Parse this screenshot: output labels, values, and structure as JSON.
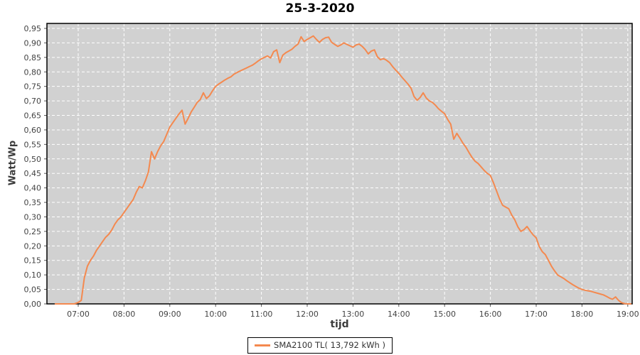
{
  "window": {
    "title": "25-3-2020"
  },
  "colors": {
    "page_bg": "#ffffff",
    "plot_bg": "#d1d1d1",
    "grid": "#ffffff",
    "plot_border": "#000000",
    "tick": "#555555",
    "tick_text": "#434343",
    "series_line": "#f4894f",
    "title_text": "#000000"
  },
  "chart_data": {
    "type": "line",
    "title": "25-3-2020",
    "xlabel": "tijd",
    "ylabel": "Watt/Wp",
    "legend": "SMA2100 TL( 13,792 kWh )",
    "legend_position": "bottom-center",
    "grid": true,
    "ylim": [
      0,
      0.95
    ],
    "x_range": [
      "06:19",
      "19:06"
    ],
    "y_tick_labels": [
      "0,00",
      "0,05",
      "0,10",
      "0,15",
      "0,20",
      "0,25",
      "0,30",
      "0,35",
      "0,40",
      "0,45",
      "0,50",
      "0,55",
      "0,60",
      "0,65",
      "0,70",
      "0,75",
      "0,80",
      "0,85",
      "0,90",
      "0,95"
    ],
    "x_tick_labels": [
      "07:00",
      "08:00",
      "09:00",
      "10:00",
      "11:00",
      "12:00",
      "13:00",
      "14:00",
      "15:00",
      "16:00",
      "17:00",
      "18:00",
      "19:00"
    ],
    "series": [
      {
        "name": "SMA2100 TL( 13,792 kWh )",
        "color": "#f4894f",
        "points": [
          [
            "06:30",
            0
          ],
          [
            "06:35",
            0
          ],
          [
            "06:40",
            0
          ],
          [
            "06:45",
            0
          ],
          [
            "06:50",
            0
          ],
          [
            "06:55",
            0
          ],
          [
            "07:00",
            0.005
          ],
          [
            "07:04",
            0.012
          ],
          [
            "07:08",
            0.09
          ],
          [
            "07:12",
            0.13
          ],
          [
            "07:16",
            0.15
          ],
          [
            "07:20",
            0.165
          ],
          [
            "07:24",
            0.185
          ],
          [
            "07:28",
            0.2
          ],
          [
            "07:32",
            0.215
          ],
          [
            "07:36",
            0.23
          ],
          [
            "07:40",
            0.24
          ],
          [
            "07:44",
            0.255
          ],
          [
            "07:48",
            0.275
          ],
          [
            "07:52",
            0.29
          ],
          [
            "07:56",
            0.3
          ],
          [
            "08:00",
            0.315
          ],
          [
            "08:04",
            0.33
          ],
          [
            "08:08",
            0.345
          ],
          [
            "08:12",
            0.36
          ],
          [
            "08:16",
            0.385
          ],
          [
            "08:20",
            0.405
          ],
          [
            "08:24",
            0.4
          ],
          [
            "08:28",
            0.425
          ],
          [
            "08:32",
            0.455
          ],
          [
            "08:36",
            0.525
          ],
          [
            "08:40",
            0.5
          ],
          [
            "08:44",
            0.525
          ],
          [
            "08:48",
            0.545
          ],
          [
            "08:52",
            0.56
          ],
          [
            "08:56",
            0.585
          ],
          [
            "09:00",
            0.61
          ],
          [
            "09:04",
            0.625
          ],
          [
            "09:08",
            0.64
          ],
          [
            "09:12",
            0.655
          ],
          [
            "09:16",
            0.668
          ],
          [
            "09:20",
            0.62
          ],
          [
            "09:24",
            0.64
          ],
          [
            "09:28",
            0.662
          ],
          [
            "09:32",
            0.678
          ],
          [
            "09:36",
            0.695
          ],
          [
            "09:40",
            0.705
          ],
          [
            "09:44",
            0.728
          ],
          [
            "09:48",
            0.708
          ],
          [
            "09:52",
            0.718
          ],
          [
            "09:56",
            0.735
          ],
          [
            "10:00",
            0.75
          ],
          [
            "10:04",
            0.758
          ],
          [
            "10:08",
            0.765
          ],
          [
            "10:12",
            0.772
          ],
          [
            "10:16",
            0.778
          ],
          [
            "10:20",
            0.783
          ],
          [
            "10:24",
            0.792
          ],
          [
            "10:28",
            0.798
          ],
          [
            "10:32",
            0.803
          ],
          [
            "10:36",
            0.808
          ],
          [
            "10:40",
            0.813
          ],
          [
            "10:44",
            0.818
          ],
          [
            "10:48",
            0.823
          ],
          [
            "10:52",
            0.83
          ],
          [
            "10:56",
            0.838
          ],
          [
            "11:00",
            0.845
          ],
          [
            "11:04",
            0.85
          ],
          [
            "11:08",
            0.855
          ],
          [
            "11:12",
            0.848
          ],
          [
            "11:16",
            0.87
          ],
          [
            "11:20",
            0.876
          ],
          [
            "11:24",
            0.832
          ],
          [
            "11:28",
            0.858
          ],
          [
            "11:32",
            0.866
          ],
          [
            "11:36",
            0.872
          ],
          [
            "11:40",
            0.878
          ],
          [
            "11:44",
            0.888
          ],
          [
            "11:48",
            0.896
          ],
          [
            "11:52",
            0.921
          ],
          [
            "11:56",
            0.905
          ],
          [
            "12:00",
            0.912
          ],
          [
            "12:04",
            0.918
          ],
          [
            "12:08",
            0.924
          ],
          [
            "12:12",
            0.912
          ],
          [
            "12:16",
            0.902
          ],
          [
            "12:20",
            0.912
          ],
          [
            "12:24",
            0.918
          ],
          [
            "12:28",
            0.92
          ],
          [
            "12:32",
            0.902
          ],
          [
            "12:36",
            0.895
          ],
          [
            "12:40",
            0.888
          ],
          [
            "12:44",
            0.893
          ],
          [
            "12:48",
            0.9
          ],
          [
            "12:52",
            0.895
          ],
          [
            "12:56",
            0.89
          ],
          [
            "13:00",
            0.885
          ],
          [
            "13:04",
            0.893
          ],
          [
            "13:08",
            0.896
          ],
          [
            "13:12",
            0.888
          ],
          [
            "13:16",
            0.877
          ],
          [
            "13:20",
            0.862
          ],
          [
            "13:24",
            0.872
          ],
          [
            "13:28",
            0.876
          ],
          [
            "13:32",
            0.852
          ],
          [
            "13:36",
            0.842
          ],
          [
            "13:40",
            0.846
          ],
          [
            "13:44",
            0.84
          ],
          [
            "13:48",
            0.832
          ],
          [
            "13:52",
            0.818
          ],
          [
            "13:56",
            0.806
          ],
          [
            "14:00",
            0.795
          ],
          [
            "14:04",
            0.782
          ],
          [
            "14:08",
            0.77
          ],
          [
            "14:12",
            0.758
          ],
          [
            "14:16",
            0.744
          ],
          [
            "14:20",
            0.715
          ],
          [
            "14:24",
            0.702
          ],
          [
            "14:28",
            0.712
          ],
          [
            "14:32",
            0.728
          ],
          [
            "14:36",
            0.71
          ],
          [
            "14:40",
            0.7
          ],
          [
            "14:44",
            0.695
          ],
          [
            "14:48",
            0.685
          ],
          [
            "14:52",
            0.673
          ],
          [
            "14:56",
            0.664
          ],
          [
            "15:00",
            0.656
          ],
          [
            "15:04",
            0.636
          ],
          [
            "15:08",
            0.62
          ],
          [
            "15:12",
            0.568
          ],
          [
            "15:16",
            0.588
          ],
          [
            "15:20",
            0.572
          ],
          [
            "15:24",
            0.554
          ],
          [
            "15:28",
            0.54
          ],
          [
            "15:32",
            0.522
          ],
          [
            "15:36",
            0.505
          ],
          [
            "15:40",
            0.492
          ],
          [
            "15:44",
            0.484
          ],
          [
            "15:48",
            0.472
          ],
          [
            "15:52",
            0.46
          ],
          [
            "15:56",
            0.45
          ],
          [
            "16:00",
            0.443
          ],
          [
            "16:04",
            0.418
          ],
          [
            "16:08",
            0.39
          ],
          [
            "16:12",
            0.362
          ],
          [
            "16:16",
            0.34
          ],
          [
            "16:20",
            0.334
          ],
          [
            "16:24",
            0.328
          ],
          [
            "16:28",
            0.306
          ],
          [
            "16:32",
            0.29
          ],
          [
            "16:36",
            0.266
          ],
          [
            "16:40",
            0.25
          ],
          [
            "16:44",
            0.256
          ],
          [
            "16:48",
            0.267
          ],
          [
            "16:52",
            0.252
          ],
          [
            "16:56",
            0.238
          ],
          [
            "17:00",
            0.228
          ],
          [
            "17:04",
            0.198
          ],
          [
            "17:08",
            0.18
          ],
          [
            "17:12",
            0.17
          ],
          [
            "17:16",
            0.15
          ],
          [
            "17:20",
            0.13
          ],
          [
            "17:24",
            0.114
          ],
          [
            "17:28",
            0.1
          ],
          [
            "17:32",
            0.094
          ],
          [
            "17:36",
            0.088
          ],
          [
            "17:40",
            0.08
          ],
          [
            "17:44",
            0.073
          ],
          [
            "17:48",
            0.066
          ],
          [
            "17:52",
            0.06
          ],
          [
            "17:56",
            0.054
          ],
          [
            "18:00",
            0.05
          ],
          [
            "18:04",
            0.047
          ],
          [
            "18:08",
            0.045
          ],
          [
            "18:12",
            0.043
          ],
          [
            "18:16",
            0.04
          ],
          [
            "18:20",
            0.037
          ],
          [
            "18:24",
            0.034
          ],
          [
            "18:28",
            0.031
          ],
          [
            "18:32",
            0.026
          ],
          [
            "18:36",
            0.02
          ],
          [
            "18:40",
            0.016
          ],
          [
            "18:44",
            0.024
          ],
          [
            "18:48",
            0.012
          ],
          [
            "18:52",
            0.004
          ],
          [
            "18:56",
            0.001
          ],
          [
            "19:00",
            0
          ],
          [
            "19:04",
            0
          ]
        ]
      }
    ]
  }
}
